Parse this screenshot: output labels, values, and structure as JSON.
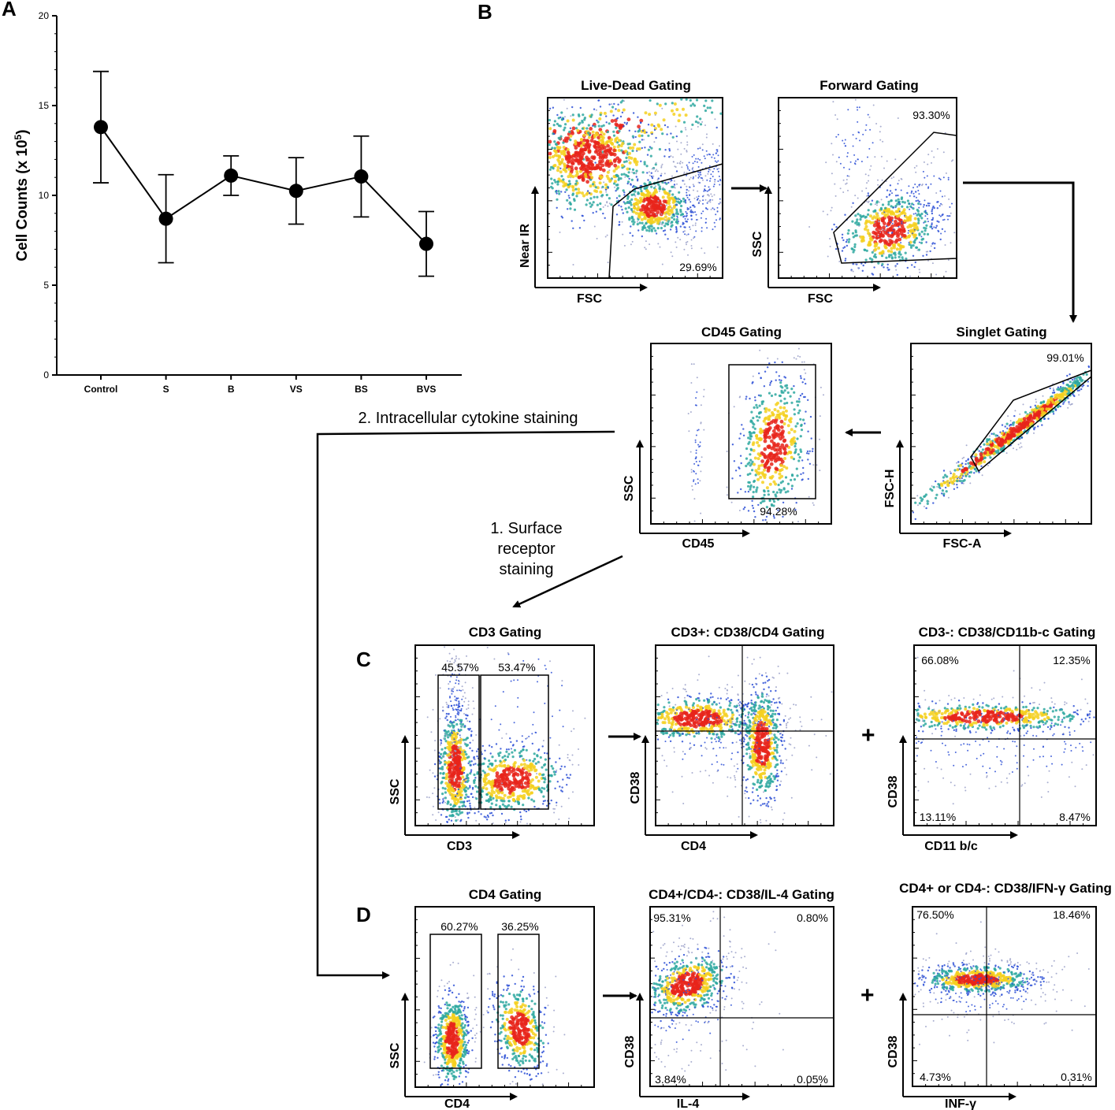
{
  "panel_letters": {
    "a": "A",
    "b": "B",
    "c": "C",
    "d": "D"
  },
  "colors": {
    "hot": "#e8251b",
    "warm": "#f5d01e",
    "mid": "#2ea8a0",
    "cool": "#2c4fd6",
    "sparse": "#9aa0c8"
  },
  "chart_data": {
    "type": "line",
    "title": "",
    "xlabel": "",
    "ylabel": "Cell Counts (x 10",
    "ylabel_sup": "5",
    "ylabel_close": ")",
    "categories": [
      "Control",
      "S",
      "B",
      "VS",
      "BS",
      "BVS"
    ],
    "values": [
      13.8,
      8.7,
      11.1,
      10.25,
      11.05,
      7.3
    ],
    "error": [
      3.1,
      2.45,
      1.1,
      1.85,
      2.25,
      1.8
    ],
    "ylim": [
      0,
      20
    ],
    "yticks": [
      "0",
      "5",
      "10",
      "15",
      "20"
    ],
    "grid": false
  },
  "arrows_text": {
    "ics": "2. Intracellular cytokine staining",
    "surface_1": "1. Surface",
    "surface_2": "receptor",
    "surface_3": "staining",
    "plus_c": "+",
    "plus_d": "+"
  },
  "plots": {
    "livedead": {
      "title": "Live-Dead Gating",
      "x": "FSC",
      "y": "Near IR",
      "gate_pct": "29.69%"
    },
    "forward": {
      "title": "Forward Gating",
      "x": "FSC",
      "y": "SSC",
      "gate_pct": "93.30%"
    },
    "singlet": {
      "title": "Singlet Gating",
      "x": "FSC-A",
      "y": "FSC-H",
      "gate_pct": "99.01%"
    },
    "cd45": {
      "title": "CD45 Gating",
      "x": "CD45",
      "y": "SSC",
      "gate_pct": "94.28%"
    },
    "cd3": {
      "title": "CD3 Gating",
      "x": "CD3",
      "y": "SSC",
      "neg_pct": "45.57%",
      "pos_pct": "53.47%"
    },
    "cd38cd4": {
      "title": "CD3+: CD38/CD4 Gating",
      "x": "CD4",
      "y": "CD38"
    },
    "cd38cd11": {
      "title": "CD3-: CD38/CD11b-c Gating",
      "x": "CD11 b/c",
      "y": "CD38",
      "ul": "66.08%",
      "ur": "12.35%",
      "ll": "13.11%",
      "lr": "8.47%"
    },
    "cd4": {
      "title": "CD4 Gating",
      "x": "CD4",
      "y": "SSC",
      "left_pct": "60.27%",
      "right_pct": "36.25%"
    },
    "il4": {
      "title": "CD4+/CD4-: CD38/IL-4 Gating",
      "x": "IL-4",
      "y": "CD38",
      "ul": "95.31%",
      "ur": "0.80%",
      "ll": "3.84%",
      "lr": "0.05%"
    },
    "ifng": {
      "title": "CD4+ or CD4-: CD38/IFN-γ Gating",
      "x": "INF-γ",
      "y": "CD38",
      "ul": "76.50%",
      "ur": "18.46%",
      "ll": "4.73%",
      "lr": "0.31%"
    }
  }
}
